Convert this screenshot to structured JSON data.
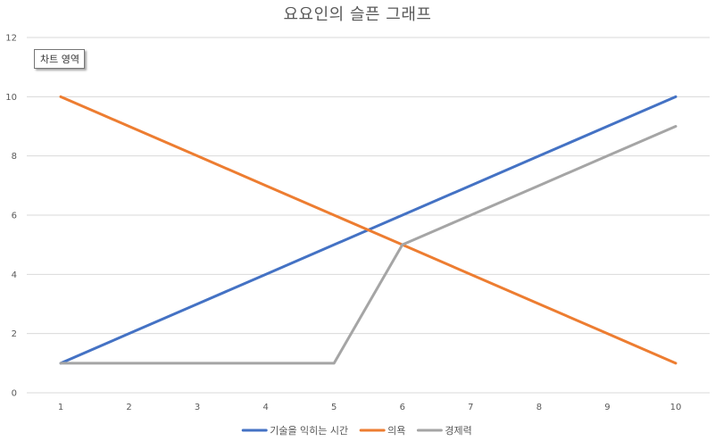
{
  "chart_data": {
    "type": "line",
    "title": "요요인의 슬픈 그래프",
    "xlabel": "",
    "ylabel": "",
    "x": [
      1,
      2,
      3,
      4,
      5,
      6,
      7,
      8,
      9,
      10
    ],
    "ylim": [
      0,
      12
    ],
    "yticks": [
      0,
      2,
      4,
      6,
      8,
      10,
      12
    ],
    "grid": true,
    "legend_position": "bottom",
    "series": [
      {
        "name": "기술을 익히는 시간",
        "color": "#4472C4",
        "values": [
          1,
          2,
          3,
          4,
          5,
          6,
          7,
          8,
          9,
          10
        ]
      },
      {
        "name": "의욕",
        "color": "#ED7D31",
        "values": [
          10,
          9,
          8,
          7,
          6,
          5,
          4,
          3,
          2,
          1
        ]
      },
      {
        "name": "경제력",
        "color": "#A5A5A5",
        "values": [
          1,
          1,
          1,
          1,
          1,
          5,
          6,
          7,
          8,
          9
        ]
      }
    ]
  },
  "tooltip": {
    "text": "차트 영역"
  },
  "colors": {
    "gridline": "#D9D9D9",
    "text": "#595959"
  }
}
